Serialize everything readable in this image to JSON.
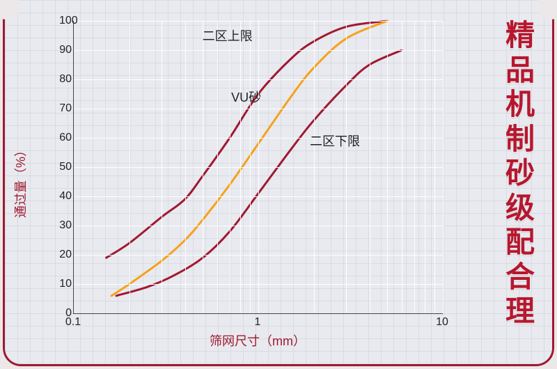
{
  "chart": {
    "type": "line",
    "x_axis": {
      "label": "筛网尺寸（mm）",
      "scale": "log",
      "min": 0.1,
      "max": 10,
      "ticks": [
        0.1,
        1,
        10
      ],
      "tick_labels": [
        "0.1",
        "1",
        "10"
      ],
      "minor_ticks": [
        0.2,
        0.3,
        0.4,
        0.5,
        0.6,
        0.7,
        0.8,
        0.9,
        2,
        3,
        4,
        5,
        6,
        7,
        8,
        9
      ]
    },
    "y_axis": {
      "label": "通过量（%）",
      "scale": "linear",
      "min": 0,
      "max": 100,
      "tick_step": 10,
      "ticks": [
        0,
        10,
        20,
        30,
        40,
        50,
        60,
        70,
        80,
        90,
        100
      ]
    },
    "grid": {
      "color": "#ffffff",
      "visible": true
    },
    "background_color": "#e8eaef",
    "axis_color": "#333333",
    "axis_label_color": "#a01830",
    "axis_label_fontsize": 18,
    "tick_fontsize": 16,
    "line_width": 3,
    "series": [
      {
        "name": "upper",
        "label": "二区上限",
        "color": "#a01830",
        "points": [
          [
            0.15,
            19
          ],
          [
            0.2,
            24
          ],
          [
            0.3,
            33
          ],
          [
            0.4,
            39
          ],
          [
            0.5,
            47
          ],
          [
            0.7,
            60
          ],
          [
            1.0,
            75
          ],
          [
            1.5,
            87
          ],
          [
            2.0,
            93
          ],
          [
            3.0,
            98
          ],
          [
            5.0,
            100
          ]
        ],
        "inline_label_pos": {
          "x": 0.68,
          "y_pct": 95
        }
      },
      {
        "name": "vu",
        "label": "VU砂",
        "color": "#f6a11a",
        "points": [
          [
            0.16,
            6
          ],
          [
            0.2,
            10
          ],
          [
            0.3,
            18
          ],
          [
            0.4,
            25
          ],
          [
            0.5,
            32
          ],
          [
            0.7,
            44
          ],
          [
            1.0,
            58
          ],
          [
            1.5,
            74
          ],
          [
            2.0,
            84
          ],
          [
            3.0,
            94
          ],
          [
            5.0,
            100
          ]
        ],
        "inline_label_pos": {
          "x": 0.86,
          "y_pct": 74
        }
      },
      {
        "name": "lower",
        "label": "二区下限",
        "color": "#a01830",
        "points": [
          [
            0.17,
            6
          ],
          [
            0.25,
            9
          ],
          [
            0.35,
            13
          ],
          [
            0.5,
            19
          ],
          [
            0.7,
            28
          ],
          [
            1.0,
            41
          ],
          [
            1.5,
            56
          ],
          [
            2.0,
            66
          ],
          [
            3.0,
            78
          ],
          [
            4.0,
            85
          ],
          [
            6.0,
            90
          ]
        ],
        "inline_label_pos": {
          "x": 2.6,
          "y_pct": 59
        }
      }
    ]
  },
  "side_title": {
    "chars": [
      "精",
      "品",
      "机",
      "制",
      "砂",
      "级",
      "配",
      "合",
      "理"
    ],
    "color": "#b6172f",
    "fontsize": 42
  },
  "frame": {
    "border_color": "#a01830",
    "border_width": 3,
    "corner_radius_bottom": 26
  }
}
